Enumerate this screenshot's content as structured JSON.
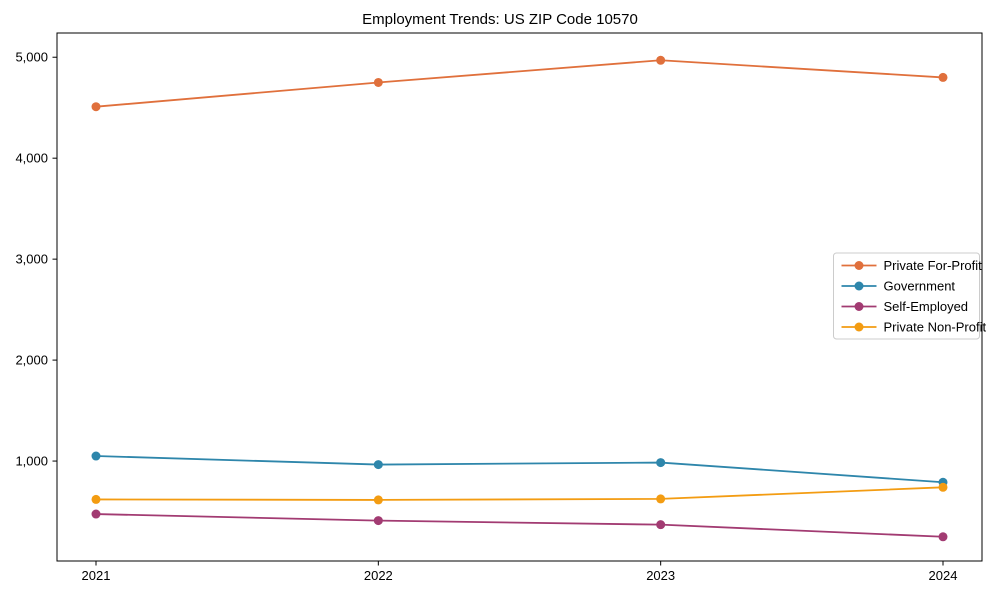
{
  "figure": {
    "title": "Employment Trends: US ZIP Code 10570"
  },
  "chart_data": {
    "type": "line",
    "title": "Employment Trends: US ZIP Code 10570",
    "xlabel": "",
    "ylabel": "",
    "categories": [
      "2021",
      "2022",
      "2023",
      "2024"
    ],
    "series": [
      {
        "name": "Private For-Profit",
        "color": "#E0703C",
        "values": [
          4510,
          4750,
          4970,
          4800
        ]
      },
      {
        "name": "Government",
        "color": "#2E86AB",
        "values": [
          1050,
          965,
          985,
          790
        ]
      },
      {
        "name": "Self-Employed",
        "color": "#A23B72",
        "values": [
          475,
          410,
          370,
          250
        ]
      },
      {
        "name": "Private Non-Profit",
        "color": "#F39C12",
        "values": [
          620,
          615,
          625,
          740
        ]
      }
    ],
    "ylim": [
      10,
      5240
    ],
    "yticks": [
      1000,
      2000,
      3000,
      4000,
      5000
    ],
    "ytick_labels": [
      "1,000",
      "2,000",
      "3,000",
      "4,000",
      "5,000"
    ],
    "grid": false,
    "legend_position": "center-right",
    "marker": "circle",
    "axis_color": "#000000",
    "legend_border_color": "#cccccc",
    "background_color": "#ffffff"
  }
}
